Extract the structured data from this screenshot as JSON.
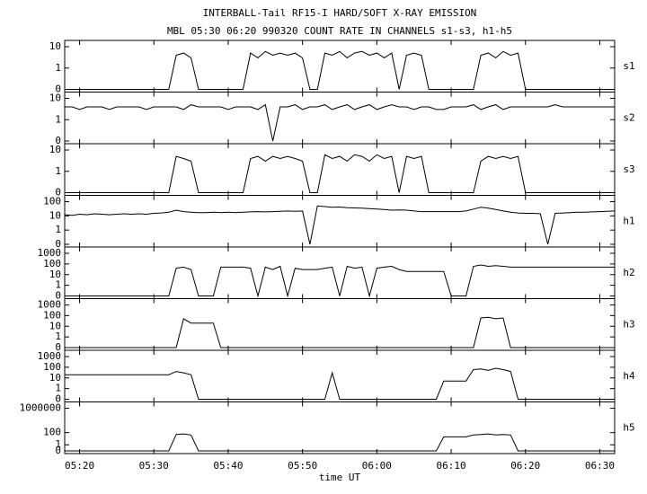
{
  "chart_data": {
    "type": "line",
    "title": "INTERBALL-Tail RF15-I HARD/SOFT X-RAY EMISSION",
    "subtitle": "MBL 05:30 06:20 990320  COUNT RATE IN CHANNELS s1-s3, h1-h5",
    "xlabel": "time UT",
    "log": true,
    "color": "#000000",
    "x": [
      "05:18",
      "05:19",
      "05:20",
      "05:21",
      "05:22",
      "05:23",
      "05:24",
      "05:25",
      "05:26",
      "05:27",
      "05:28",
      "05:29",
      "05:30",
      "05:31",
      "05:32",
      "05:33",
      "05:34",
      "05:35",
      "05:36",
      "05:37",
      "05:38",
      "05:39",
      "05:40",
      "05:41",
      "05:42",
      "05:43",
      "05:44",
      "05:45",
      "05:46",
      "05:47",
      "05:48",
      "05:49",
      "05:50",
      "05:51",
      "05:52",
      "05:53",
      "05:54",
      "05:55",
      "05:56",
      "05:57",
      "05:58",
      "05:59",
      "06:00",
      "06:01",
      "06:02",
      "06:03",
      "06:04",
      "06:05",
      "06:06",
      "06:07",
      "06:08",
      "06:09",
      "06:10",
      "06:11",
      "06:12",
      "06:13",
      "06:14",
      "06:15",
      "06:16",
      "06:17",
      "06:18",
      "06:19",
      "06:20",
      "06:21",
      "06:22",
      "06:23",
      "06:24",
      "06:25",
      "06:26",
      "06:27",
      "06:28",
      "06:29",
      "06:30",
      "06:31",
      "06:32"
    ],
    "xlim": [
      "05:18",
      "06:32"
    ],
    "xticks": [
      "05:20",
      "05:30",
      "05:40",
      "05:50",
      "06:00",
      "06:10",
      "06:20",
      "06:30"
    ],
    "series": [
      {
        "name": "s1",
        "ylim": [
          0,
          10
        ],
        "yticks": [
          0,
          1,
          10
        ],
        "values": [
          0,
          0,
          0,
          0,
          0,
          0,
          0,
          0,
          0,
          0,
          0,
          0,
          0,
          0,
          0,
          4,
          5,
          3,
          0,
          0,
          0,
          0,
          0,
          0,
          0,
          5,
          3,
          6,
          4,
          5,
          4,
          5,
          3,
          0,
          0,
          5,
          4,
          6,
          3,
          5,
          6,
          4,
          5,
          3,
          5,
          0,
          4,
          5,
          4,
          0,
          0,
          0,
          0,
          0,
          0,
          0,
          4,
          5,
          3,
          6,
          4,
          5,
          0,
          0,
          0,
          0,
          0,
          0,
          0,
          0,
          0,
          0,
          0,
          0,
          0
        ]
      },
      {
        "name": "s2",
        "ylim": [
          0,
          10
        ],
        "yticks": [
          0,
          1,
          10
        ],
        "values": [
          4,
          4,
          3,
          4,
          4,
          4,
          3,
          4,
          4,
          4,
          4,
          3,
          4,
          4,
          4,
          4,
          3,
          5,
          4,
          4,
          4,
          4,
          3,
          4,
          4,
          4,
          3,
          5,
          0,
          4,
          4,
          5,
          3,
          4,
          4,
          5,
          3,
          4,
          5,
          3,
          4,
          5,
          3,
          4,
          5,
          4,
          4,
          3,
          4,
          4,
          3,
          3,
          4,
          4,
          4,
          5,
          3,
          4,
          5,
          3,
          4,
          4,
          4,
          4,
          4,
          4,
          5,
          4,
          4,
          4,
          4,
          4,
          4,
          4,
          4
        ]
      },
      {
        "name": "s3",
        "ylim": [
          0,
          10
        ],
        "yticks": [
          0,
          1,
          10
        ],
        "values": [
          0,
          0,
          0,
          0,
          0,
          0,
          0,
          0,
          0,
          0,
          0,
          0,
          0,
          0,
          0,
          5,
          4,
          3,
          0,
          0,
          0,
          0,
          0,
          0,
          0,
          4,
          5,
          3,
          5,
          4,
          5,
          4,
          3,
          0,
          0,
          6,
          4,
          5,
          3,
          6,
          5,
          3,
          6,
          4,
          5,
          0,
          5,
          4,
          5,
          0,
          0,
          0,
          0,
          0,
          0,
          0,
          3,
          5,
          4,
          5,
          4,
          5,
          0,
          0,
          0,
          0,
          0,
          0,
          0,
          0,
          0,
          0,
          0,
          0,
          0
        ]
      },
      {
        "name": "h1",
        "ylim": [
          0,
          100
        ],
        "yticks": [
          0,
          1,
          10,
          100
        ],
        "values": [
          12,
          11,
          13,
          12,
          14,
          13,
          12,
          13,
          14,
          13,
          14,
          13,
          15,
          16,
          18,
          25,
          20,
          18,
          17,
          17,
          18,
          17,
          18,
          17,
          18,
          19,
          20,
          19,
          20,
          21,
          22,
          21,
          22,
          0,
          50,
          45,
          40,
          42,
          38,
          36,
          35,
          32,
          30,
          28,
          25,
          26,
          25,
          22,
          20,
          20,
          20,
          20,
          20,
          20,
          22,
          30,
          40,
          35,
          28,
          22,
          18,
          16,
          15,
          15,
          14,
          0,
          15,
          16,
          17,
          18,
          18,
          19,
          20,
          21,
          22
        ]
      },
      {
        "name": "h2",
        "ylim": [
          0,
          1000
        ],
        "yticks": [
          0,
          1,
          10,
          100,
          1000
        ],
        "values": [
          0,
          0,
          0,
          0,
          0,
          0,
          0,
          0,
          0,
          0,
          0,
          0,
          0,
          0,
          0,
          40,
          50,
          30,
          0,
          0,
          0,
          50,
          50,
          50,
          50,
          40,
          0,
          50,
          30,
          60,
          0,
          40,
          30,
          30,
          30,
          40,
          50,
          0,
          60,
          40,
          50,
          0,
          40,
          50,
          60,
          30,
          20,
          20,
          20,
          20,
          20,
          20,
          0,
          0,
          0,
          60,
          80,
          60,
          70,
          60,
          50,
          50,
          50,
          50,
          50,
          50,
          50,
          50,
          50,
          50,
          50,
          50,
          50,
          50,
          50
        ]
      },
      {
        "name": "h3",
        "ylim": [
          0,
          1000
        ],
        "yticks": [
          0,
          1,
          10,
          100,
          1000
        ],
        "values": [
          0,
          0,
          0,
          0,
          0,
          0,
          0,
          0,
          0,
          0,
          0,
          0,
          0,
          0,
          0,
          0,
          50,
          20,
          20,
          20,
          20,
          0,
          0,
          0,
          0,
          0,
          0,
          0,
          0,
          0,
          0,
          0,
          0,
          0,
          0,
          0,
          0,
          0,
          0,
          0,
          0,
          0,
          0,
          0,
          0,
          0,
          0,
          0,
          0,
          0,
          0,
          0,
          0,
          0,
          0,
          0,
          60,
          70,
          50,
          60,
          0,
          0,
          0,
          0,
          0,
          0,
          0,
          0,
          0,
          0,
          0,
          0,
          0,
          0,
          0
        ]
      },
      {
        "name": "h4",
        "ylim": [
          0,
          1000
        ],
        "yticks": [
          0,
          1,
          10,
          100,
          1000
        ],
        "values": [
          20,
          20,
          20,
          20,
          20,
          20,
          20,
          20,
          20,
          20,
          20,
          20,
          20,
          20,
          20,
          40,
          30,
          20,
          0,
          0,
          0,
          0,
          0,
          0,
          0,
          0,
          0,
          0,
          0,
          0,
          0,
          0,
          0,
          0,
          0,
          0,
          30,
          0,
          0,
          0,
          0,
          0,
          0,
          0,
          0,
          0,
          0,
          0,
          0,
          0,
          0,
          5,
          5,
          5,
          5,
          60,
          70,
          50,
          80,
          60,
          40,
          0,
          0,
          0,
          0,
          0,
          0,
          0,
          0,
          0,
          0,
          0,
          0,
          0,
          0
        ]
      },
      {
        "name": "h5",
        "ylim": [
          0,
          1000000
        ],
        "yticks": [
          0,
          1,
          100,
          1000000
        ],
        "values": [
          0,
          0,
          0,
          0,
          0,
          0,
          0,
          0,
          0,
          0,
          0,
          0,
          0,
          0,
          0,
          50,
          60,
          40,
          0,
          0,
          0,
          0,
          0,
          0,
          0,
          0,
          0,
          0,
          0,
          0,
          0,
          0,
          0,
          0,
          0,
          0,
          0,
          0,
          0,
          0,
          0,
          0,
          0,
          0,
          0,
          0,
          0,
          0,
          0,
          0,
          0,
          20,
          20,
          20,
          20,
          40,
          50,
          60,
          40,
          50,
          40,
          0,
          0,
          0,
          0,
          0,
          0,
          0,
          0,
          0,
          0,
          0,
          0,
          0,
          0
        ]
      }
    ]
  }
}
